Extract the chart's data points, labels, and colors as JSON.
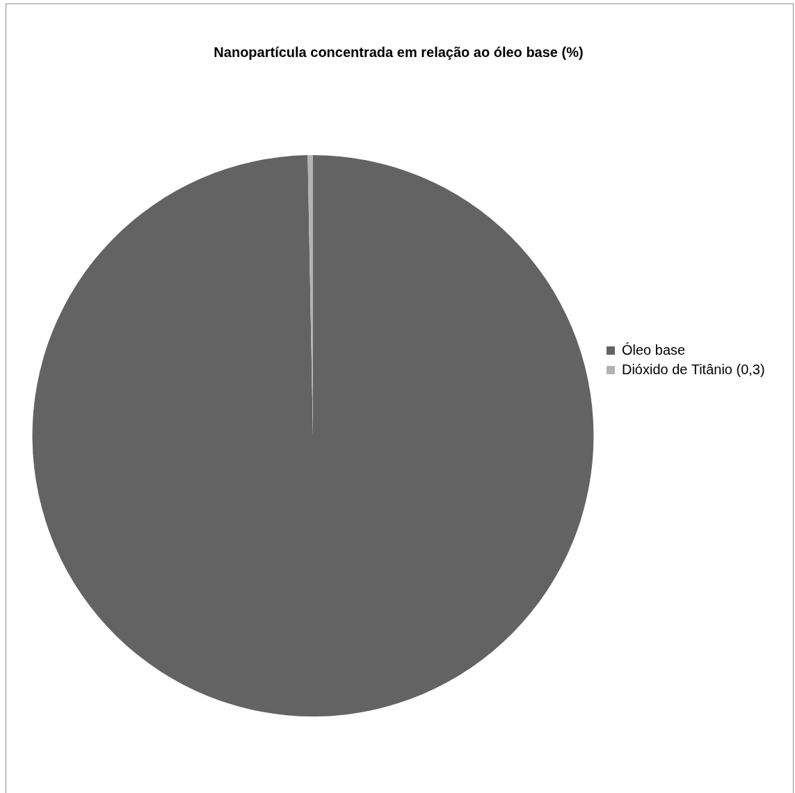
{
  "chart_data": {
    "type": "pie",
    "title": "Nanopartícula concentrada em relação ao óleo base (%)",
    "categories": [
      "Óleo base",
      "Dióxido de Titânio (0,3)"
    ],
    "values": [
      99.7,
      0.3
    ],
    "colors": [
      "#636363",
      "#b3b3b3"
    ],
    "legend": "right"
  }
}
